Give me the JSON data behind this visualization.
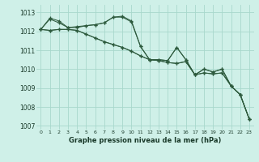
{
  "title": "Graphe pression niveau de la mer (hPa)",
  "bg_color": "#cff0e8",
  "grid_color": "#a8d8cc",
  "line_color": "#2d5a3d",
  "xlim": [
    -0.5,
    23.5
  ],
  "ylim": [
    1006.8,
    1013.4
  ],
  "yticks": [
    1007,
    1008,
    1009,
    1010,
    1011,
    1012,
    1013
  ],
  "xticks": [
    0,
    1,
    2,
    3,
    4,
    5,
    6,
    7,
    8,
    9,
    10,
    11,
    12,
    13,
    14,
    15,
    16,
    17,
    18,
    19,
    20,
    21,
    22,
    23
  ],
  "line1": [
    1012.1,
    1012.65,
    1012.45,
    1012.2,
    1012.2,
    1012.3,
    1012.35,
    1012.45,
    1012.75,
    1012.75,
    1012.5,
    1011.2,
    1010.5,
    1010.5,
    1010.45,
    1011.15,
    1010.5,
    1009.7,
    1010.0,
    1009.85,
    1010.0,
    1009.1,
    1008.65,
    1007.35
  ],
  "line2": [
    1012.1,
    1012.7,
    1012.55,
    1012.2,
    1012.25,
    1012.3,
    1012.35,
    1012.45,
    1012.75,
    1012.8,
    1012.55,
    1011.2,
    1010.5,
    1010.5,
    1010.45,
    1011.15,
    1010.5,
    1009.7,
    1010.0,
    1009.85,
    1010.0,
    1009.1,
    1008.65,
    1007.35
  ],
  "line3": [
    1012.1,
    1012.05,
    1012.1,
    1012.1,
    1012.05,
    1011.85,
    1011.65,
    1011.45,
    1011.3,
    1011.15,
    1010.95,
    1010.7,
    1010.5,
    1010.45,
    1010.35,
    1010.3,
    1010.4,
    1009.7,
    1009.8,
    1009.75,
    1009.8,
    1009.1,
    1008.65,
    1007.35
  ],
  "line4": [
    1012.1,
    1012.05,
    1012.1,
    1012.1,
    1012.05,
    1011.85,
    1011.65,
    1011.45,
    1011.3,
    1011.15,
    1010.95,
    1010.7,
    1010.5,
    1010.45,
    1010.35,
    1010.3,
    1010.4,
    1009.7,
    1009.8,
    1009.75,
    1009.8,
    1009.1,
    1008.65,
    1007.35
  ]
}
